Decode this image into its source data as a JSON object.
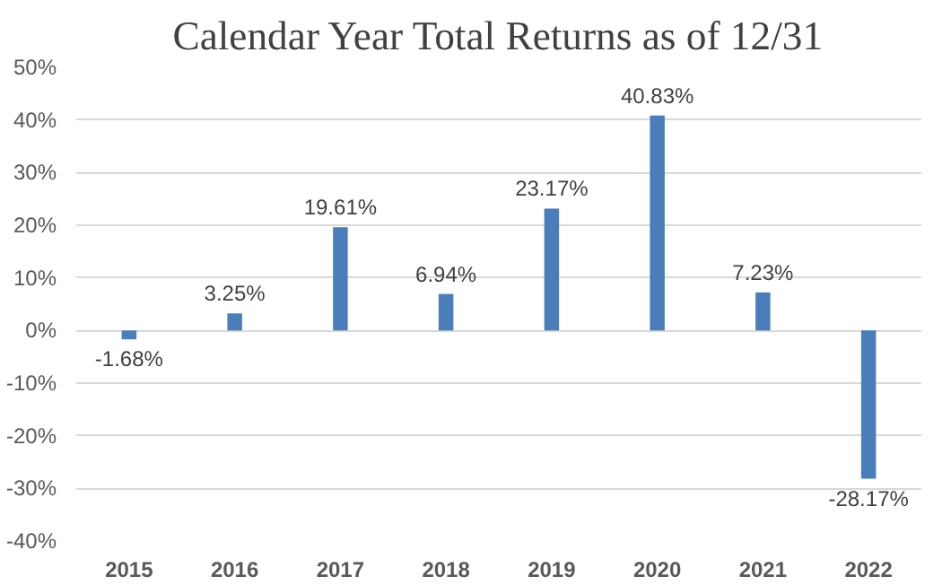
{
  "chart_data": {
    "type": "bar",
    "title": "Calendar Year Total Returns as of 12/31",
    "categories": [
      "2015",
      "2016",
      "2017",
      "2018",
      "2019",
      "2020",
      "2021",
      "2022"
    ],
    "values": [
      -1.68,
      3.25,
      19.61,
      6.94,
      23.17,
      40.83,
      7.23,
      -28.17
    ],
    "value_labels": [
      "-1.68%",
      "3.25%",
      "19.61%",
      "6.94%",
      "23.17%",
      "40.83%",
      "7.23%",
      "-28.17%"
    ],
    "color": "#4a7ebb",
    "ylim": [
      -40,
      50
    ],
    "yticks": [
      {
        "value": -40,
        "label": "-40%"
      },
      {
        "value": -30,
        "label": "-30%"
      },
      {
        "value": -20,
        "label": "-20%"
      },
      {
        "value": -10,
        "label": "-10%"
      },
      {
        "value": 0,
        "label": "0%"
      },
      {
        "value": 10,
        "label": "10%"
      },
      {
        "value": 20,
        "label": "20%"
      },
      {
        "value": 30,
        "label": "30%"
      },
      {
        "value": 40,
        "label": "40%"
      },
      {
        "value": 50,
        "label": "50%"
      }
    ],
    "grid": "y"
  }
}
